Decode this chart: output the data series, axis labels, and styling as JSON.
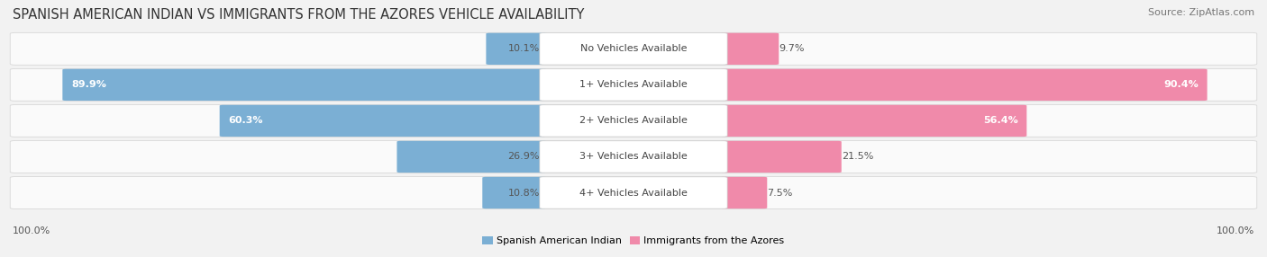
{
  "title": "SPANISH AMERICAN INDIAN VS IMMIGRANTS FROM THE AZORES VEHICLE AVAILABILITY",
  "source": "Source: ZipAtlas.com",
  "categories": [
    "No Vehicles Available",
    "1+ Vehicles Available",
    "2+ Vehicles Available",
    "3+ Vehicles Available",
    "4+ Vehicles Available"
  ],
  "left_values": [
    10.1,
    89.9,
    60.3,
    26.9,
    10.8
  ],
  "right_values": [
    9.7,
    90.4,
    56.4,
    21.5,
    7.5
  ],
  "left_color": "#7bafd4",
  "right_color": "#f08aaa",
  "left_label": "Spanish American Indian",
  "right_label": "Immigrants from the Azores",
  "max_value": 100.0,
  "left_footer": "100.0%",
  "right_footer": "100.0%",
  "background_color": "#f2f2f2",
  "row_bg_color": "#fafafa",
  "row_border_color": "#d8d8d8",
  "title_fontsize": 10.5,
  "source_fontsize": 8,
  "label_fontsize": 8,
  "value_fontsize": 8,
  "footer_fontsize": 8
}
